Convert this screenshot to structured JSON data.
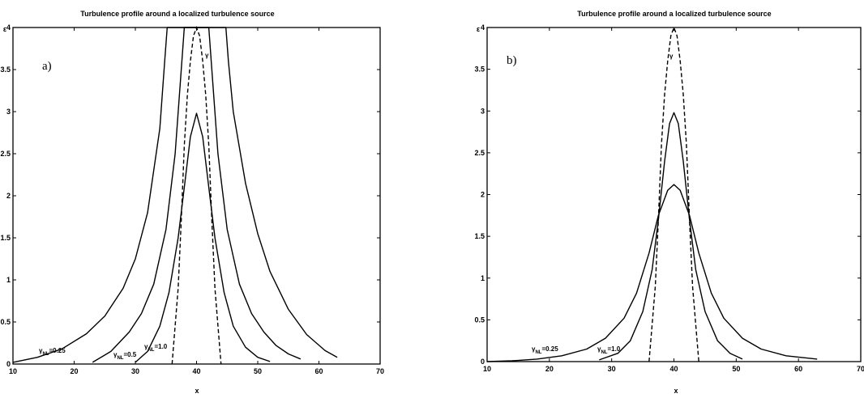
{
  "colors": {
    "line": "#000000",
    "background": "#ffffff"
  },
  "chart_data": [
    {
      "type": "line",
      "panel_label": "a)",
      "title": "Turbulence profile around a localized turbulence source",
      "xlabel": "x",
      "ylabel": "ε",
      "xlim": [
        10,
        70
      ],
      "ylim": [
        0,
        4
      ],
      "x_ticks": [
        "10",
        "20",
        "30",
        "40",
        "50",
        "60",
        "70"
      ],
      "y_ticks": [
        "0",
        "0.5",
        "1",
        "1.5",
        "2",
        "2.5",
        "3",
        "3.5",
        "4"
      ],
      "grid": false,
      "series": [
        {
          "style": "solid",
          "x": [
            10,
            14,
            18,
            22,
            25,
            28,
            30,
            32,
            34,
            34.8,
            35.2,
            44.8,
            45.2,
            46,
            48,
            50,
            52,
            55,
            58,
            61,
            63
          ],
          "y": [
            0.02,
            0.08,
            0.18,
            0.36,
            0.57,
            0.9,
            1.25,
            1.8,
            2.8,
            3.6,
            4.0,
            4.0,
            3.6,
            3.0,
            2.15,
            1.55,
            1.1,
            0.65,
            0.35,
            0.16,
            0.08
          ]
        },
        {
          "style": "solid",
          "x": [
            23,
            26,
            29,
            31,
            33,
            35,
            36.5,
            37.6,
            38,
            42,
            42.4,
            43.5,
            45,
            47,
            49,
            51,
            53,
            55,
            57
          ],
          "y": [
            0.02,
            0.15,
            0.38,
            0.6,
            0.95,
            1.6,
            2.5,
            3.6,
            4.0,
            4.0,
            3.6,
            2.5,
            1.6,
            0.95,
            0.6,
            0.38,
            0.22,
            0.12,
            0.06
          ]
        },
        {
          "style": "solid",
          "x": [
            30,
            32,
            34,
            35.5,
            37,
            38,
            39,
            40,
            41,
            42,
            43,
            44.5,
            46,
            48,
            50,
            52
          ],
          "y": [
            0.02,
            0.15,
            0.45,
            0.85,
            1.5,
            2.1,
            2.7,
            2.98,
            2.7,
            2.1,
            1.5,
            0.85,
            0.45,
            0.2,
            0.08,
            0.03
          ]
        },
        {
          "style": "dashed",
          "x": [
            36,
            37,
            37.5,
            38,
            38.5,
            39,
            39.5,
            40,
            40.5,
            41,
            41.5,
            42,
            42.5,
            43,
            44
          ],
          "y": [
            0,
            0.9,
            1.7,
            2.6,
            3.2,
            3.6,
            3.9,
            4.0,
            3.9,
            3.6,
            3.2,
            2.6,
            1.7,
            0.9,
            0
          ]
        }
      ],
      "annotations": [
        {
          "text": "γ",
          "sub": "NL",
          "val": "=0.25"
        },
        {
          "text": "γ",
          "sub": "NL",
          "val": "=0.5"
        },
        {
          "text": "γ",
          "sub": "NL",
          "val": "=1.0"
        },
        {
          "text": "γ",
          "sub": "",
          "val": ""
        }
      ]
    },
    {
      "type": "line",
      "panel_label": "b)",
      "title": "Turbulence profile around a localized turbulence source",
      "xlabel": "x",
      "ylabel": "ε",
      "xlim": [
        10,
        70
      ],
      "ylim": [
        0,
        4
      ],
      "x_ticks": [
        "10",
        "20",
        "30",
        "40",
        "50",
        "60",
        "70"
      ],
      "y_ticks": [
        "0",
        "0.5",
        "1",
        "1.5",
        "2",
        "2.5",
        "3",
        "3.5",
        "4"
      ],
      "grid": false,
      "series": [
        {
          "style": "solid",
          "x": [
            10,
            14,
            18,
            22,
            26,
            29,
            32,
            34,
            36,
            37.5,
            39,
            40,
            41,
            42.5,
            44,
            46,
            48,
            51,
            54,
            58,
            63
          ],
          "y": [
            0.0,
            0.01,
            0.03,
            0.07,
            0.15,
            0.28,
            0.52,
            0.82,
            1.3,
            1.75,
            2.05,
            2.12,
            2.05,
            1.75,
            1.3,
            0.82,
            0.52,
            0.28,
            0.15,
            0.07,
            0.03
          ]
        },
        {
          "style": "solid",
          "x": [
            28,
            31,
            33,
            35,
            36.5,
            37.5,
            38.5,
            39.3,
            40,
            40.7,
            41.5,
            42.5,
            43.5,
            45,
            47,
            49,
            51
          ],
          "y": [
            0.02,
            0.1,
            0.25,
            0.6,
            1.1,
            1.7,
            2.4,
            2.85,
            2.98,
            2.85,
            2.4,
            1.7,
            1.1,
            0.6,
            0.25,
            0.1,
            0.03
          ]
        },
        {
          "style": "dashed",
          "x": [
            36,
            37,
            37.5,
            38,
            38.5,
            39,
            39.5,
            40,
            40.5,
            41,
            41.5,
            42,
            42.5,
            43,
            44
          ],
          "y": [
            0,
            0.9,
            1.7,
            2.6,
            3.2,
            3.6,
            3.9,
            4.0,
            3.9,
            3.6,
            3.2,
            2.6,
            1.7,
            0.9,
            0
          ]
        }
      ],
      "annotations": [
        {
          "text": "γ",
          "sub": "NL",
          "val": "=0.25"
        },
        {
          "text": "γ",
          "sub": "NL",
          "val": "=1.0"
        },
        {
          "text": "γ",
          "sub": "",
          "val": ""
        }
      ]
    }
  ]
}
